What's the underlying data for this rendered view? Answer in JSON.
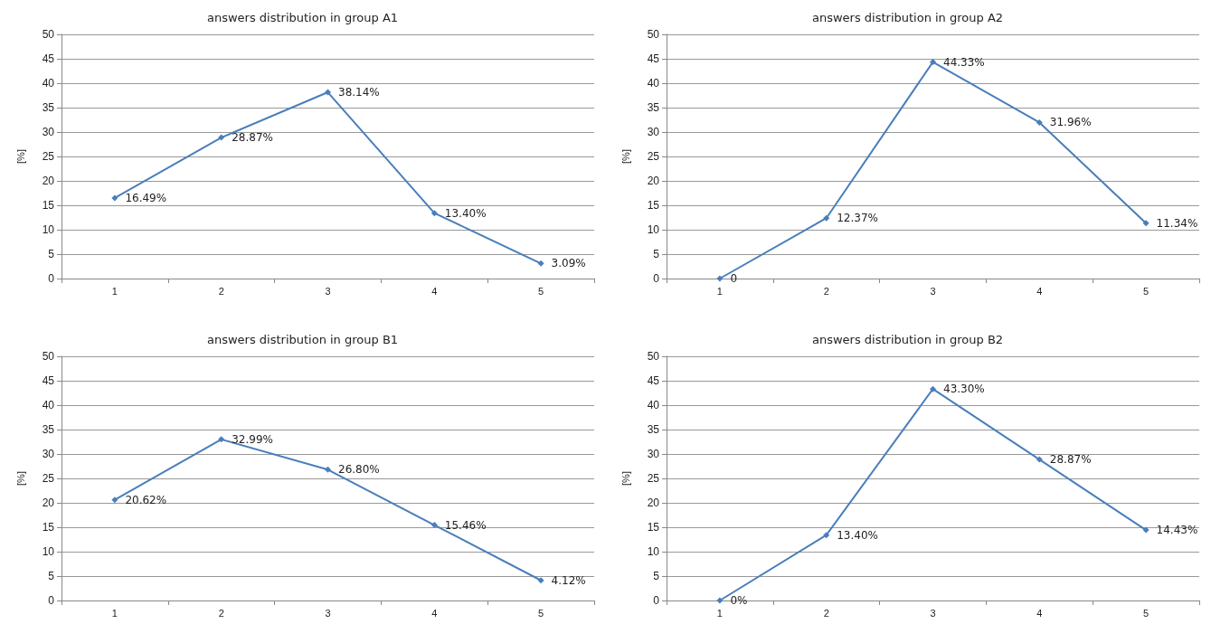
{
  "chart_data": [
    {
      "type": "line",
      "title": "answers distribution in group A1",
      "ylabel": "[%]",
      "categories": [
        "1",
        "2",
        "3",
        "4",
        "5"
      ],
      "series": [
        {
          "color": "#4a7ebb",
          "values": [
            16.49,
            28.87,
            38.14,
            13.4,
            3.09
          ],
          "value_labels": [
            "16.49%",
            "28.87%",
            "38.14%",
            "13.40%",
            "3.09%"
          ]
        }
      ],
      "ylim": [
        0,
        50
      ],
      "yticks": [
        0,
        5,
        10,
        15,
        20,
        25,
        30,
        35,
        40,
        45,
        50
      ],
      "grid": "y",
      "marker": "diamond",
      "line_style": "solid"
    },
    {
      "type": "line",
      "title": "answers distribution in group A2",
      "ylabel": "[%]",
      "categories": [
        "1",
        "2",
        "3",
        "4",
        "5"
      ],
      "series": [
        {
          "color": "#4a7ebb",
          "values": [
            0,
            12.37,
            44.33,
            31.96,
            11.34
          ],
          "value_labels": [
            "0",
            "12.37%",
            "44.33%",
            "31.96%",
            "11.34%"
          ]
        }
      ],
      "ylim": [
        0,
        50
      ],
      "yticks": [
        0,
        5,
        10,
        15,
        20,
        25,
        30,
        35,
        40,
        45,
        50
      ],
      "grid": "y",
      "marker": "diamond",
      "line_style": "solid"
    },
    {
      "type": "line",
      "title": "answers distribution in group B1",
      "ylabel": "[%]",
      "categories": [
        "1",
        "2",
        "3",
        "4",
        "5"
      ],
      "series": [
        {
          "color": "#4a7ebb",
          "values": [
            20.62,
            32.99,
            26.8,
            15.46,
            4.12
          ],
          "value_labels": [
            "20.62%",
            "32.99%",
            "26.80%",
            "15.46%",
            "4.12%"
          ]
        }
      ],
      "ylim": [
        0,
        50
      ],
      "yticks": [
        0,
        5,
        10,
        15,
        20,
        25,
        30,
        35,
        40,
        45,
        50
      ],
      "grid": "y",
      "marker": "diamond",
      "line_style": "solid"
    },
    {
      "type": "line",
      "title": "answers distribution in group B2",
      "ylabel": "[%]",
      "categories": [
        "1",
        "2",
        "3",
        "4",
        "5"
      ],
      "series": [
        {
          "color": "#4a7ebb",
          "values": [
            0,
            13.4,
            43.3,
            28.87,
            14.43
          ],
          "value_labels": [
            "0%",
            "13.40%",
            "43.30%",
            "28.87%",
            "14.43%"
          ]
        }
      ],
      "ylim": [
        0,
        50
      ],
      "yticks": [
        0,
        5,
        10,
        15,
        20,
        25,
        30,
        35,
        40,
        45,
        50
      ],
      "grid": "y",
      "marker": "diamond",
      "line_style": "solid"
    }
  ]
}
